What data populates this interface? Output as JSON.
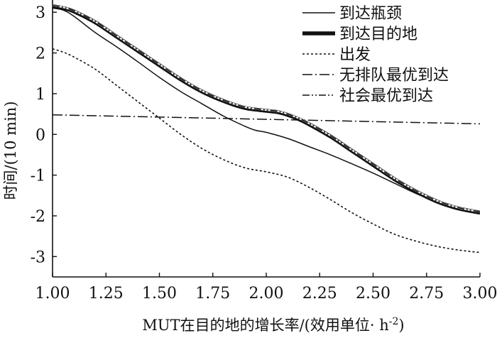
{
  "chart_data": {
    "type": "line",
    "title": "",
    "xlabel": "MUT在目的地的增长率/(效用单位· h",
    "xlabel_sup": "-2",
    "xlabel_suffix": ")",
    "ylabel": "时间/(10 min)",
    "xlim": [
      1.0,
      3.0
    ],
    "ylim": [
      -3.5,
      3.3
    ],
    "x_ticks": [
      1.0,
      1.25,
      1.5,
      1.75,
      2.0,
      2.25,
      2.5,
      2.75,
      3.0
    ],
    "x_tick_labels": [
      "1.00",
      "1.25",
      "1.50",
      "1.75",
      "2.00",
      "2.25",
      "2.50",
      "2.75",
      "3.00"
    ],
    "y_ticks": [
      3,
      2,
      1,
      0,
      -1,
      -2,
      -3
    ],
    "y_tick_labels": [
      "3",
      "2",
      "1",
      "0",
      "-1",
      "-2",
      "-3"
    ],
    "grid": false,
    "legend_position": "top-right",
    "series": [
      {
        "name": "到达瓶颈",
        "style": "solid-thin",
        "color": "#111111",
        "x": [
          1.0,
          1.05,
          1.1,
          1.2,
          1.3,
          1.4,
          1.5,
          1.6,
          1.7,
          1.8,
          1.9,
          1.95,
          2.0,
          2.1,
          2.2,
          2.3,
          2.4,
          2.5,
          2.6,
          2.7,
          2.8,
          2.9,
          3.0
        ],
        "y": [
          3.1,
          3.05,
          2.9,
          2.5,
          2.15,
          1.78,
          1.4,
          1.05,
          0.75,
          0.45,
          0.2,
          0.1,
          0.05,
          -0.1,
          -0.3,
          -0.5,
          -0.72,
          -0.95,
          -1.2,
          -1.45,
          -1.65,
          -1.82,
          -1.95
        ]
      },
      {
        "name": "到达目的地",
        "style": "solid-thick",
        "color": "#111111",
        "x": [
          1.0,
          1.05,
          1.1,
          1.2,
          1.3,
          1.4,
          1.5,
          1.6,
          1.7,
          1.8,
          1.9,
          2.0,
          2.05,
          2.1,
          2.15,
          2.2,
          2.3,
          2.4,
          2.5,
          2.6,
          2.7,
          2.8,
          2.9,
          3.0
        ],
        "y": [
          3.15,
          3.1,
          3.02,
          2.75,
          2.4,
          2.05,
          1.7,
          1.35,
          1.05,
          0.82,
          0.65,
          0.58,
          0.55,
          0.48,
          0.38,
          0.25,
          -0.05,
          -0.4,
          -0.75,
          -1.1,
          -1.4,
          -1.65,
          -1.82,
          -1.92
        ]
      },
      {
        "name": "出发",
        "style": "dotted",
        "color": "#111111",
        "x": [
          1.0,
          1.05,
          1.1,
          1.2,
          1.3,
          1.4,
          1.5,
          1.6,
          1.7,
          1.8,
          1.9,
          2.0,
          2.1,
          2.2,
          2.3,
          2.4,
          2.5,
          2.6,
          2.7,
          2.8,
          2.9,
          3.0
        ],
        "y": [
          2.1,
          2.02,
          1.9,
          1.6,
          1.2,
          0.8,
          0.4,
          0.0,
          -0.35,
          -0.62,
          -0.82,
          -0.92,
          -1.05,
          -1.3,
          -1.6,
          -1.92,
          -2.2,
          -2.45,
          -2.62,
          -2.75,
          -2.84,
          -2.9
        ]
      },
      {
        "name": "无排队最优到达",
        "style": "dash-dot",
        "color": "#111111",
        "x": [
          1.0,
          3.0
        ],
        "y": [
          0.48,
          0.26
        ]
      },
      {
        "name": "社会最优到达",
        "style": "dash-dot-dot",
        "color": "#111111",
        "x": [
          1.0,
          1.05,
          1.1,
          1.2,
          1.3,
          1.4,
          1.5,
          1.6,
          1.7,
          1.8,
          1.9,
          2.0,
          2.05,
          2.1,
          2.15,
          2.2,
          2.3,
          2.4,
          2.5,
          2.6,
          2.7,
          2.8,
          2.9,
          3.0
        ],
        "y": [
          3.17,
          3.12,
          3.04,
          2.77,
          2.42,
          2.07,
          1.72,
          1.37,
          1.07,
          0.84,
          0.67,
          0.6,
          0.57,
          0.5,
          0.4,
          0.27,
          -0.03,
          -0.38,
          -0.73,
          -1.08,
          -1.38,
          -1.63,
          -1.8,
          -1.9
        ]
      }
    ]
  }
}
